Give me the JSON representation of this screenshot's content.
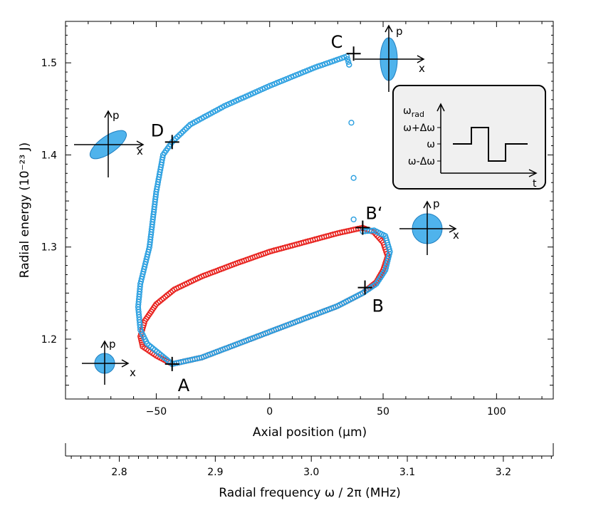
{
  "chart_data": {
    "type": "scatter",
    "xlabel": "Axial position (µm)",
    "ylabel": "Radial energy (10⁻²³ J)",
    "x2label": "Radial frequency ω / 2π (MHz)",
    "xlim": [
      -90,
      125
    ],
    "ylim": [
      1.135,
      1.545
    ],
    "x2lim": [
      2.744,
      3.252
    ],
    "xticks": [
      "-50",
      "0",
      "50",
      "100"
    ],
    "yticks": [
      "1.2",
      "1.3",
      "1.4",
      "1.5"
    ],
    "x2ticks": [
      "2.8",
      "2.9",
      "3.0",
      "3.1",
      "3.2"
    ],
    "colors": {
      "red": "#e8231f",
      "blue": "#2a9fe0",
      "ellipse_fill": "#4fb3ec",
      "ellipse_stroke": "#1f7fc0"
    },
    "series": [
      {
        "color": "red",
        "loop": [
          [
            -43,
            1.173
          ],
          [
            -30,
            1.18
          ],
          [
            -15,
            1.194
          ],
          [
            0,
            1.208
          ],
          [
            15,
            1.222
          ],
          [
            30,
            1.236
          ],
          [
            41,
            1.25
          ],
          [
            47,
            1.262
          ],
          [
            50,
            1.275
          ],
          [
            52,
            1.29
          ],
          [
            50,
            1.305
          ],
          [
            46,
            1.316
          ],
          [
            41,
            1.321
          ],
          [
            30,
            1.315
          ],
          [
            15,
            1.305
          ],
          [
            0,
            1.295
          ],
          [
            -15,
            1.282
          ],
          [
            -30,
            1.268
          ],
          [
            -42,
            1.254
          ],
          [
            -50,
            1.238
          ],
          [
            -55,
            1.22
          ],
          [
            -57,
            1.203
          ],
          [
            -56,
            1.192
          ],
          [
            -50,
            1.182
          ]
        ]
      },
      {
        "color": "blue",
        "path": [
          [
            -43,
            1.173
          ],
          [
            -30,
            1.18
          ],
          [
            -15,
            1.194
          ],
          [
            0,
            1.208
          ],
          [
            15,
            1.222
          ],
          [
            30,
            1.236
          ],
          [
            41,
            1.25
          ],
          [
            47,
            1.26
          ],
          [
            51,
            1.275
          ],
          [
            53,
            1.295
          ],
          [
            51,
            1.312
          ],
          [
            46,
            1.318
          ],
          [
            41,
            1.317
          ],
          [
            37,
            1.33
          ],
          [
            37,
            1.375
          ],
          [
            36,
            1.435
          ],
          [
            35,
            1.498
          ],
          [
            34,
            1.507
          ],
          [
            20,
            1.495
          ],
          [
            0,
            1.475
          ],
          [
            -20,
            1.453
          ],
          [
            -35,
            1.433
          ],
          [
            -43,
            1.414
          ],
          [
            -47,
            1.4
          ],
          [
            -50,
            1.36
          ],
          [
            -53,
            1.3
          ],
          [
            -57,
            1.26
          ],
          [
            -58,
            1.235
          ],
          [
            -57,
            1.21
          ],
          [
            -54,
            1.195
          ],
          [
            -48,
            1.183
          ],
          [
            -43,
            1.173
          ]
        ]
      }
    ],
    "markers": [
      {
        "label": "A",
        "x": -43,
        "y": 1.173
      },
      {
        "label": "B",
        "x": 42,
        "y": 1.256
      },
      {
        "label": "B‘",
        "x": 41,
        "y": 1.321
      },
      {
        "label": "C",
        "x": 37,
        "y": 1.51
      },
      {
        "label": "D",
        "x": -43,
        "y": 1.414
      }
    ]
  },
  "phase_space_axes": {
    "x": "x",
    "p": "p"
  },
  "inset": {
    "ylabel": "ω",
    "ylabel_sub": "rad",
    "xlabel": "t",
    "levels": [
      "ω+Δω",
      "ω",
      "ω-Δω"
    ]
  }
}
